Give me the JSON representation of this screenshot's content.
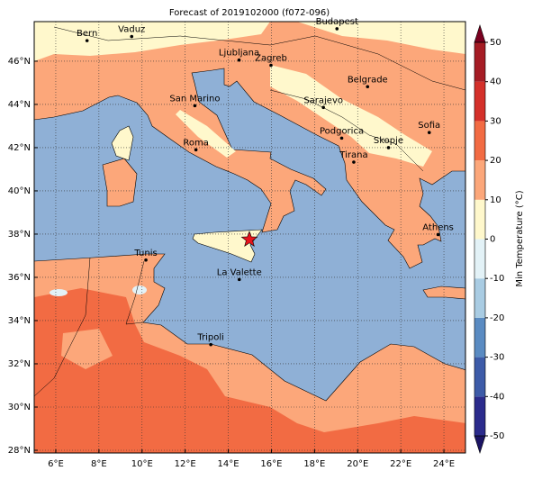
{
  "title": "Forecast of 2019102000 (f072-096)",
  "map": {
    "lon_range": [
      5,
      25
    ],
    "lat_range": [
      27.875,
      47.83
    ],
    "lon_ticks": [
      {
        "value": 6,
        "label": "6°E"
      },
      {
        "value": 8,
        "label": "8°E"
      },
      {
        "value": 10,
        "label": "10°E"
      },
      {
        "value": 12,
        "label": "12°E"
      },
      {
        "value": 14,
        "label": "14°E"
      },
      {
        "value": 16,
        "label": "16°E"
      },
      {
        "value": 18,
        "label": "18°E"
      },
      {
        "value": 20,
        "label": "20°E"
      },
      {
        "value": 22,
        "label": "22°E"
      },
      {
        "value": 24,
        "label": "24°E"
      }
    ],
    "lat_ticks": [
      {
        "value": 28,
        "label": "28°N"
      },
      {
        "value": 30,
        "label": "30°N"
      },
      {
        "value": 32,
        "label": "32°N"
      },
      {
        "value": 34,
        "label": "34°N"
      },
      {
        "value": 36,
        "label": "36°N"
      },
      {
        "value": 38,
        "label": "38°N"
      },
      {
        "value": 40,
        "label": "40°N"
      },
      {
        "value": 42,
        "label": "42°N"
      },
      {
        "value": 44,
        "label": "44°N"
      },
      {
        "value": 46,
        "label": "46°N"
      }
    ],
    "cities": [
      {
        "name": "Bern",
        "lon": 7.45,
        "lat": 46.95
      },
      {
        "name": "Vaduz",
        "lon": 9.52,
        "lat": 47.14
      },
      {
        "name": "Budapest",
        "lon": 19.04,
        "lat": 47.5
      },
      {
        "name": "Ljubljana",
        "lon": 14.5,
        "lat": 46.05
      },
      {
        "name": "Zagreb",
        "lon": 15.98,
        "lat": 45.81
      },
      {
        "name": "Belgrade",
        "lon": 20.46,
        "lat": 44.82
      },
      {
        "name": "San Marino",
        "lon": 12.45,
        "lat": 43.94
      },
      {
        "name": "Sarajevo",
        "lon": 18.41,
        "lat": 43.86
      },
      {
        "name": "Sofia",
        "lon": 23.32,
        "lat": 42.7
      },
      {
        "name": "Podgorica",
        "lon": 19.26,
        "lat": 42.44
      },
      {
        "name": "Skopje",
        "lon": 21.43,
        "lat": 42.0
      },
      {
        "name": "Roma",
        "lon": 12.5,
        "lat": 41.9
      },
      {
        "name": "Tirana",
        "lon": 19.82,
        "lat": 41.33
      },
      {
        "name": "Athens",
        "lon": 23.73,
        "lat": 37.98
      },
      {
        "name": "Tunis",
        "lon": 10.18,
        "lat": 36.8
      },
      {
        "name": "La Valette",
        "lon": 14.51,
        "lat": 35.9
      },
      {
        "name": "Tripoli",
        "lon": 13.19,
        "lat": 32.89
      }
    ]
  },
  "colorbar": {
    "label": "Min Temperature (°C)",
    "ticks": [
      -50,
      -40,
      -30,
      -20,
      -10,
      0,
      10,
      20,
      30,
      40,
      50
    ],
    "colors": [
      "#2b2b8c",
      "#3d5ba8",
      "#5a8bc2",
      "#a9cce3",
      "#e3f2f7",
      "#fff8cc",
      "#fca77a",
      "#f26b43",
      "#d4302a",
      "#a51c24"
    ],
    "under_color": "#1b1464",
    "over_color": "#7a0020"
  }
}
